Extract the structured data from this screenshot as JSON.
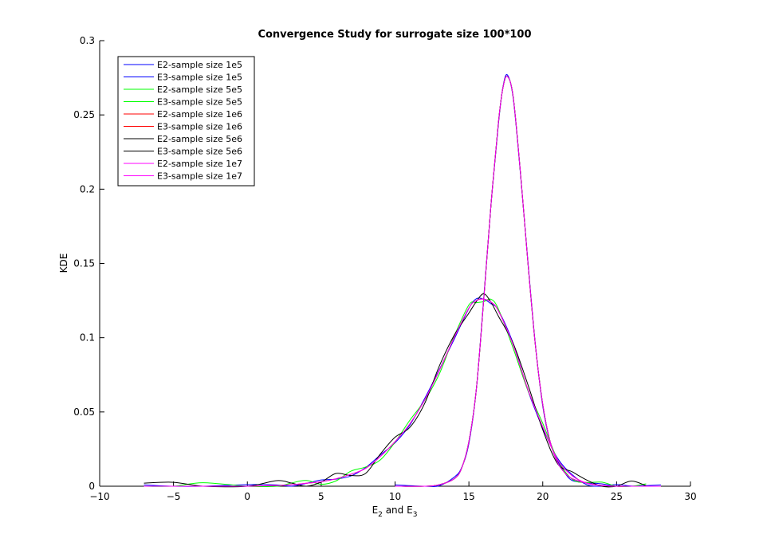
{
  "chart_data": {
    "type": "line",
    "title": "Convergence Study for surrogate size 100*100",
    "xlabel": {
      "base": "E",
      "sub1": "2",
      "mid": " and E",
      "sub2": "3"
    },
    "ylabel": "KDE",
    "xlim": [
      -10,
      30
    ],
    "ylim": [
      0,
      0.3
    ],
    "xticks": [
      -10,
      -5,
      0,
      5,
      10,
      15,
      20,
      25,
      30
    ],
    "yticks": [
      0,
      0.05,
      0.1,
      0.15,
      0.2,
      0.25,
      0.3
    ],
    "xtick_labels": [
      "−10",
      "−5",
      "0",
      "5",
      "10",
      "15",
      "20",
      "25",
      "30"
    ],
    "ytick_labels": [
      "0",
      "0.05",
      "0.1",
      "0.15",
      "0.2",
      "0.25",
      "0.3"
    ],
    "grid": false,
    "legend_position": "top-left",
    "series": [
      {
        "name": "E2-sample size 1e5",
        "color": "#0000ff",
        "dist": "E2",
        "variant": 1
      },
      {
        "name": "E3-sample size 1e5",
        "color": "#0000ff",
        "dist": "E3",
        "variant": 1
      },
      {
        "name": "E2-sample size 5e5",
        "color": "#00ff00",
        "dist": "E2",
        "variant": 2
      },
      {
        "name": "E3-sample size 5e5",
        "color": "#00ff00",
        "dist": "E3",
        "variant": 0
      },
      {
        "name": "E2-sample size 1e6",
        "color": "#ff0000",
        "dist": "E2",
        "variant": 0
      },
      {
        "name": "E3-sample size 1e6",
        "color": "#ff0000",
        "dist": "E3",
        "variant": 0
      },
      {
        "name": "E2-sample size 5e6",
        "color": "#000000",
        "dist": "E2",
        "variant": 3
      },
      {
        "name": "E3-sample size 5e6",
        "color": "#000000",
        "dist": "E3",
        "variant": 0
      },
      {
        "name": "E2-sample size 1e7",
        "color": "#ff00ff",
        "dist": "E2",
        "variant": 0
      },
      {
        "name": "E3-sample size 1e7",
        "color": "#ff00ff",
        "dist": "E3",
        "variant": 0
      }
    ],
    "curves": {
      "E2": {
        "x": [
          -7,
          -5,
          -3,
          0,
          2,
          3,
          4,
          5,
          6,
          7,
          8,
          9,
          10,
          11,
          12,
          13,
          14,
          15,
          15.5,
          16,
          16.5,
          17,
          18,
          19,
          20,
          21,
          22,
          23,
          24,
          25,
          26,
          27
        ],
        "y": [
          0,
          0,
          0,
          0,
          0.0005,
          0.001,
          0.002,
          0.003,
          0.005,
          0.008,
          0.012,
          0.02,
          0.03,
          0.042,
          0.058,
          0.078,
          0.1,
          0.12,
          0.125,
          0.126,
          0.124,
          0.118,
          0.095,
          0.065,
          0.04,
          0.018,
          0.007,
          0.002,
          0.0005,
          0,
          0,
          0
        ]
      },
      "E3": {
        "x": [
          10,
          12,
          13,
          14,
          14.5,
          15,
          15.5,
          16,
          16.5,
          17,
          17.3,
          17.6,
          18,
          18.5,
          19,
          19.5,
          20,
          20.5,
          21,
          21.5,
          22,
          23,
          24,
          25,
          26,
          28
        ],
        "y": [
          0,
          0,
          0.001,
          0.005,
          0.012,
          0.03,
          0.065,
          0.125,
          0.19,
          0.245,
          0.268,
          0.276,
          0.262,
          0.21,
          0.15,
          0.095,
          0.055,
          0.03,
          0.016,
          0.009,
          0.005,
          0.002,
          0.0005,
          0,
          0,
          0
        ]
      }
    }
  }
}
